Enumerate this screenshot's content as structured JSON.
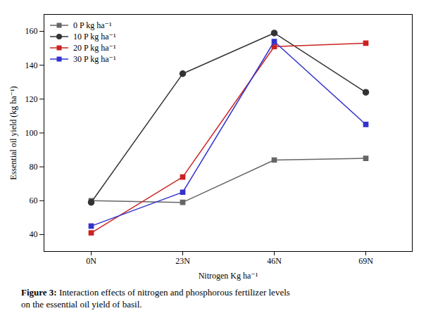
{
  "chart_data": {
    "type": "line",
    "caption": "Figure 3: Interaction effects of nitrogen and phosphorous fertilizer levels\non the essential oil yield of basil.",
    "xlabel": "Nitrogen Kg ha⁻¹",
    "ylabel": "Essential oil yield (kg ha⁻¹)",
    "categories": [
      "0N",
      "23N",
      "46N",
      "69N"
    ],
    "series": [
      {
        "name": "0 P kg ha⁻¹",
        "color": "#666666",
        "marker": "square",
        "values": [
          60,
          59,
          84,
          85
        ]
      },
      {
        "name": "10 P kg ha⁻¹",
        "color": "#333333",
        "marker": "circle",
        "values": [
          59,
          135,
          159,
          124
        ]
      },
      {
        "name": "20 P kg ha⁻¹",
        "color": "#cc2222",
        "marker": "square",
        "values": [
          41,
          74,
          151,
          153
        ]
      },
      {
        "name": "30 P kg ha⁻¹",
        "color": "#3333cc",
        "marker": "square",
        "values": [
          45,
          65,
          154,
          105
        ]
      }
    ],
    "ylim": [
      30,
      170
    ],
    "yticks": [
      40,
      60,
      80,
      100,
      120,
      140,
      160
    ],
    "legend": "upper left"
  }
}
